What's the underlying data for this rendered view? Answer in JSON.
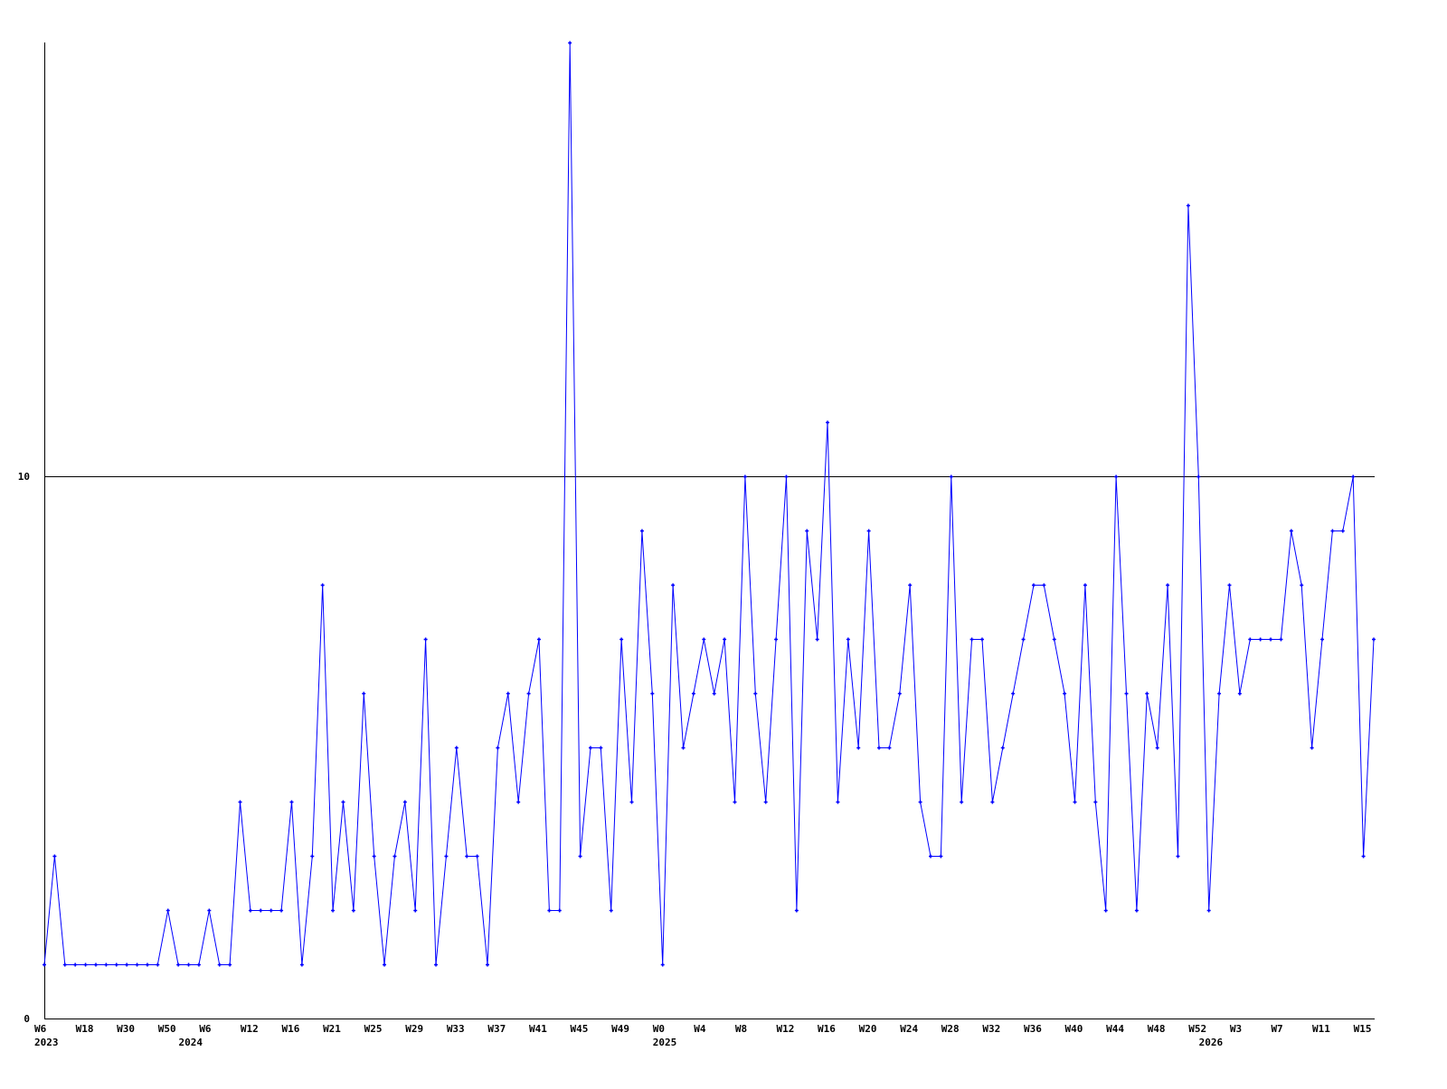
{
  "chart_data": {
    "type": "line",
    "title": "",
    "xlabel": "",
    "ylabel": "",
    "ylim": [
      0,
      18
    ],
    "y_ticks": [
      {
        "value": 0,
        "label": "0"
      },
      {
        "value": 10,
        "label": "10"
      }
    ],
    "grid": "single horizontal line at 10",
    "legend": "none",
    "colors": {
      "series": "#0000ff",
      "axis": "#000000"
    },
    "x_tick_labels": [
      {
        "index": 0,
        "label": "W6"
      },
      {
        "index": 4,
        "label": "W18"
      },
      {
        "index": 8,
        "label": "W30"
      },
      {
        "index": 12,
        "label": "W50"
      },
      {
        "index": 16,
        "label": "W6"
      },
      {
        "index": 20,
        "label": "W12"
      },
      {
        "index": 24,
        "label": "W16"
      },
      {
        "index": 28,
        "label": "W21"
      },
      {
        "index": 32,
        "label": "W25"
      },
      {
        "index": 36,
        "label": "W29"
      },
      {
        "index": 40,
        "label": "W33"
      },
      {
        "index": 44,
        "label": "W37"
      },
      {
        "index": 48,
        "label": "W41"
      },
      {
        "index": 52,
        "label": "W45"
      },
      {
        "index": 56,
        "label": "W49"
      },
      {
        "index": 60,
        "label": "W0"
      },
      {
        "index": 64,
        "label": "W4"
      },
      {
        "index": 68,
        "label": "W8"
      },
      {
        "index": 72,
        "label": "W12"
      },
      {
        "index": 76,
        "label": "W16"
      },
      {
        "index": 80,
        "label": "W20"
      },
      {
        "index": 84,
        "label": "W24"
      },
      {
        "index": 88,
        "label": "W28"
      },
      {
        "index": 92,
        "label": "W32"
      },
      {
        "index": 96,
        "label": "W36"
      },
      {
        "index": 100,
        "label": "W40"
      },
      {
        "index": 104,
        "label": "W44"
      },
      {
        "index": 108,
        "label": "W48"
      },
      {
        "index": 112,
        "label": "W52"
      },
      {
        "index": 116,
        "label": "W3"
      },
      {
        "index": 120,
        "label": "W7"
      },
      {
        "index": 124,
        "label": "W11"
      },
      {
        "index": 128,
        "label": "W15"
      }
    ],
    "year_labels": [
      {
        "index": 0,
        "label": "2023"
      },
      {
        "index": 14,
        "label": "2024"
      },
      {
        "index": 60,
        "label": "2025"
      },
      {
        "index": 113,
        "label": "2026"
      }
    ],
    "series": [
      {
        "values": [
          1,
          3,
          1,
          1,
          1,
          1,
          1,
          1,
          1,
          1,
          1,
          1,
          2,
          1,
          1,
          1,
          2,
          1,
          1,
          4,
          2,
          2,
          2,
          2,
          4,
          1,
          3,
          8,
          2,
          4,
          2,
          6,
          3,
          1,
          3,
          4,
          2,
          7,
          1,
          3,
          5,
          3,
          3,
          1,
          5,
          6,
          4,
          6,
          7,
          2,
          2,
          18,
          3,
          5,
          5,
          2,
          7,
          4,
          9,
          6,
          1,
          8,
          5,
          6,
          7,
          6,
          7,
          4,
          10,
          6,
          4,
          7,
          10,
          2,
          9,
          7,
          11,
          4,
          7,
          5,
          9,
          5,
          5,
          6,
          8,
          4,
          3,
          3,
          10,
          4,
          7,
          7,
          4,
          5,
          6,
          7,
          8,
          8,
          7,
          6,
          4,
          8,
          4,
          2,
          10,
          6,
          2,
          6,
          5,
          8,
          3,
          15,
          10,
          2,
          6,
          8,
          6,
          7,
          7,
          7,
          7,
          9,
          8,
          5,
          7,
          9,
          9,
          10,
          3,
          7
        ]
      }
    ]
  }
}
